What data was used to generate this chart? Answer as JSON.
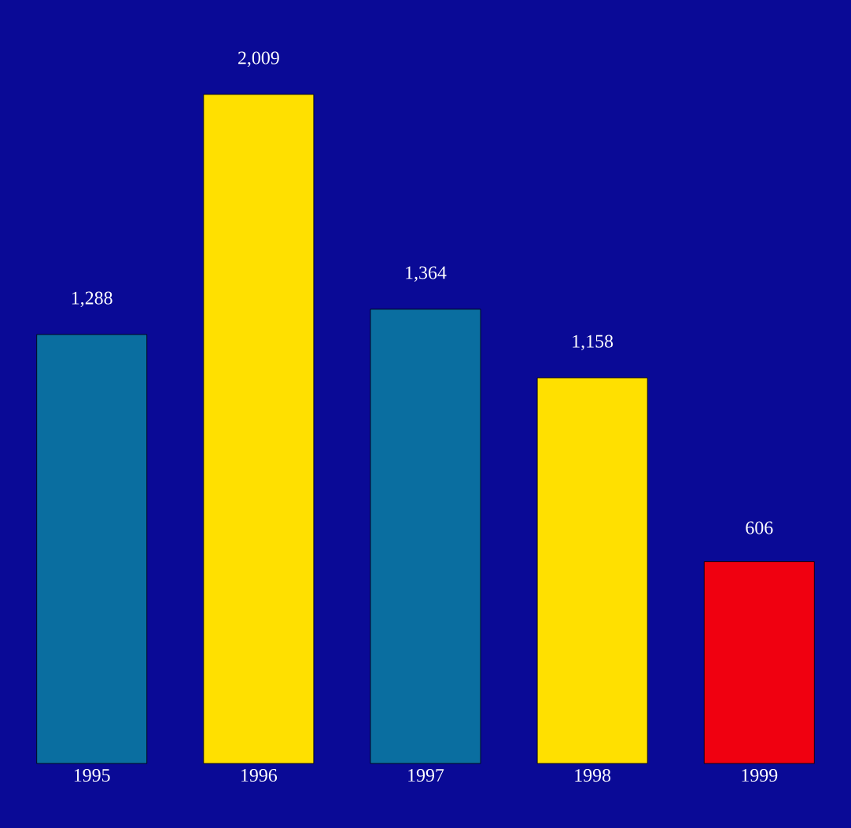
{
  "chart_data": {
    "type": "bar",
    "categories": [
      "1995",
      "1996",
      "1997",
      "1998",
      "1999"
    ],
    "values": [
      1288,
      2009,
      1364,
      1158,
      606
    ],
    "colors": [
      "#0a6ea0",
      "#ffe000",
      "#0a6ea0",
      "#ffe000",
      "#f00010"
    ],
    "value_labels": [
      "1,288",
      "2,009",
      "1,364",
      "1,158",
      "606"
    ],
    "tick_labels": "x"
  }
}
